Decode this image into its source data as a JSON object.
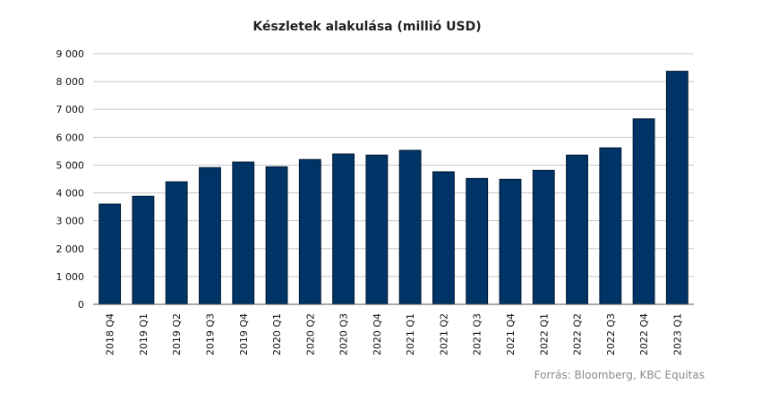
{
  "chart_data": {
    "type": "bar",
    "title": "Készletek alakulása (millió USD)",
    "source": "Forrás: Bloomberg, KBC Equitas",
    "xlabel": "",
    "ylabel": "",
    "categories": [
      "2018 Q4",
      "2019 Q1",
      "2019 Q2",
      "2019 Q3",
      "2019 Q4",
      "2020 Q1",
      "2020 Q2",
      "2020 Q3",
      "2020 Q4",
      "2021 Q1",
      "2021 Q2",
      "2021 Q3",
      "2021 Q4",
      "2022 Q1",
      "2022 Q2",
      "2022 Q3",
      "2022 Q4",
      "2023 Q1"
    ],
    "values": [
      3600,
      3880,
      4400,
      4910,
      5110,
      4940,
      5200,
      5400,
      5360,
      5530,
      4760,
      4520,
      4490,
      4810,
      5360,
      5620,
      6660,
      8370
    ],
    "ylim": [
      0,
      9000
    ],
    "yticks": [
      0,
      1000,
      2000,
      3000,
      4000,
      5000,
      6000,
      7000,
      8000,
      9000
    ],
    "ytick_labels": [
      "0",
      "1 000",
      "2 000",
      "3 000",
      "4 000",
      "5 000",
      "6 000",
      "7 000",
      "8 000",
      "9 000"
    ],
    "grid": true,
    "legend": "none",
    "colors": {
      "bar": "#003366",
      "grid": "#c8c8c8",
      "axis": "#555555"
    }
  }
}
